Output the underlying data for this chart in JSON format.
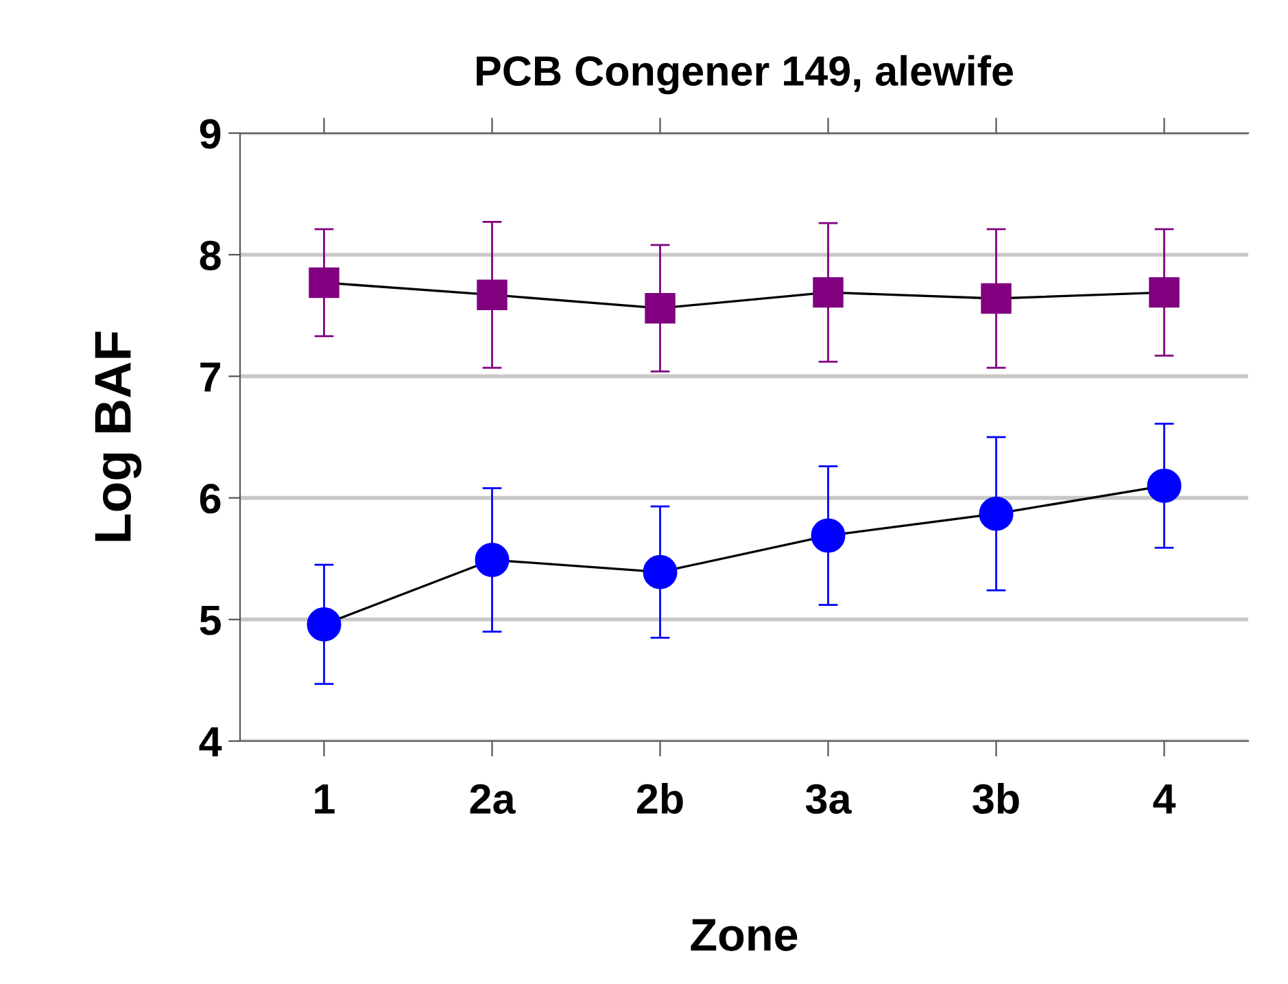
{
  "chart_data": {
    "type": "line",
    "title": "PCB Congener 149, alewife",
    "xlabel": "Zone",
    "ylabel": "Log BAF",
    "categories": [
      "1",
      "2a",
      "2b",
      "3a",
      "3b",
      "4"
    ],
    "series": [
      {
        "color": "#800080",
        "marker": "square",
        "values": [
          7.77,
          7.67,
          7.56,
          7.69,
          7.64,
          7.69
        ],
        "errors": [
          0.44,
          0.6,
          0.52,
          0.57,
          0.57,
          0.52
        ]
      },
      {
        "color": "#0000ff",
        "marker": "circle",
        "values": [
          4.96,
          5.49,
          5.39,
          5.69,
          5.87,
          6.1
        ],
        "errors": [
          0.49,
          0.59,
          0.54,
          0.57,
          0.63,
          0.51
        ]
      }
    ],
    "ylim": [
      4,
      9
    ],
    "yticks": [
      4,
      5,
      6,
      7,
      8,
      9
    ],
    "grid": "y",
    "legend": false
  }
}
